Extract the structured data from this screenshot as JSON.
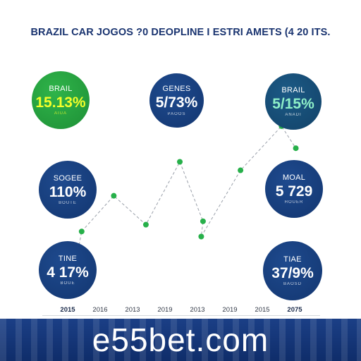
{
  "title": "BRAZIL CAR JOGOS ?0 DEOPLINE I ESTRI AMETS (4 20 ITS.",
  "brand": "e55bet.com",
  "colors": {
    "primary": "#133670",
    "accent_green": "#1e8f36",
    "point_green": "#27b04a",
    "dash": "#9aa0aa",
    "banner": "#0f2d6a"
  },
  "stats": {
    "brail": {
      "label": "BRAIL",
      "value": "15.13%",
      "sub": "AIUA"
    },
    "genes": {
      "label": "GENES",
      "value": "5/73%",
      "sub": "PAOOS"
    },
    "brail2": {
      "label": "BRAIL",
      "value": "5/15%",
      "sub": "ANADI"
    },
    "sogee": {
      "label": "SOGEE",
      "value": "110%",
      "sub": "BOUTE"
    },
    "moal": {
      "label": "MOAL",
      "value": "5 729",
      "sub": "HOUER"
    },
    "tine": {
      "label": "TINE",
      "value": "4 17%",
      "sub": "BOUE"
    },
    "tiae": {
      "label": "TIAE",
      "value": "37/9%",
      "sub": "BAOSD"
    }
  },
  "chart_data": {
    "type": "line",
    "title": "BRAZIL CAR JOGOS ?0 DEOPLINE I ESTRI AMETS (4 20 ITS.",
    "x_tick_labels": [
      "2015",
      "2016",
      "2013",
      "2019",
      "2013",
      "2019",
      "2015",
      "2075"
    ],
    "grid": false,
    "legend": "none",
    "series": [
      {
        "points": [
          {
            "x": 1.3,
            "y": 36
          },
          {
            "x": 2.2,
            "y": 57
          },
          {
            "x": 3.1,
            "y": 40
          },
          {
            "x": 4.05,
            "y": 77
          },
          {
            "x": 4.7,
            "y": 42
          },
          {
            "x": 4.65,
            "y": 33
          },
          {
            "x": 5.75,
            "y": 72
          },
          {
            "x": 6.9,
            "y": 98
          },
          {
            "x": 7.3,
            "y": 85
          }
        ]
      }
    ],
    "xlim": [
      0,
      8
    ],
    "ylim": [
      0,
      110
    ]
  }
}
